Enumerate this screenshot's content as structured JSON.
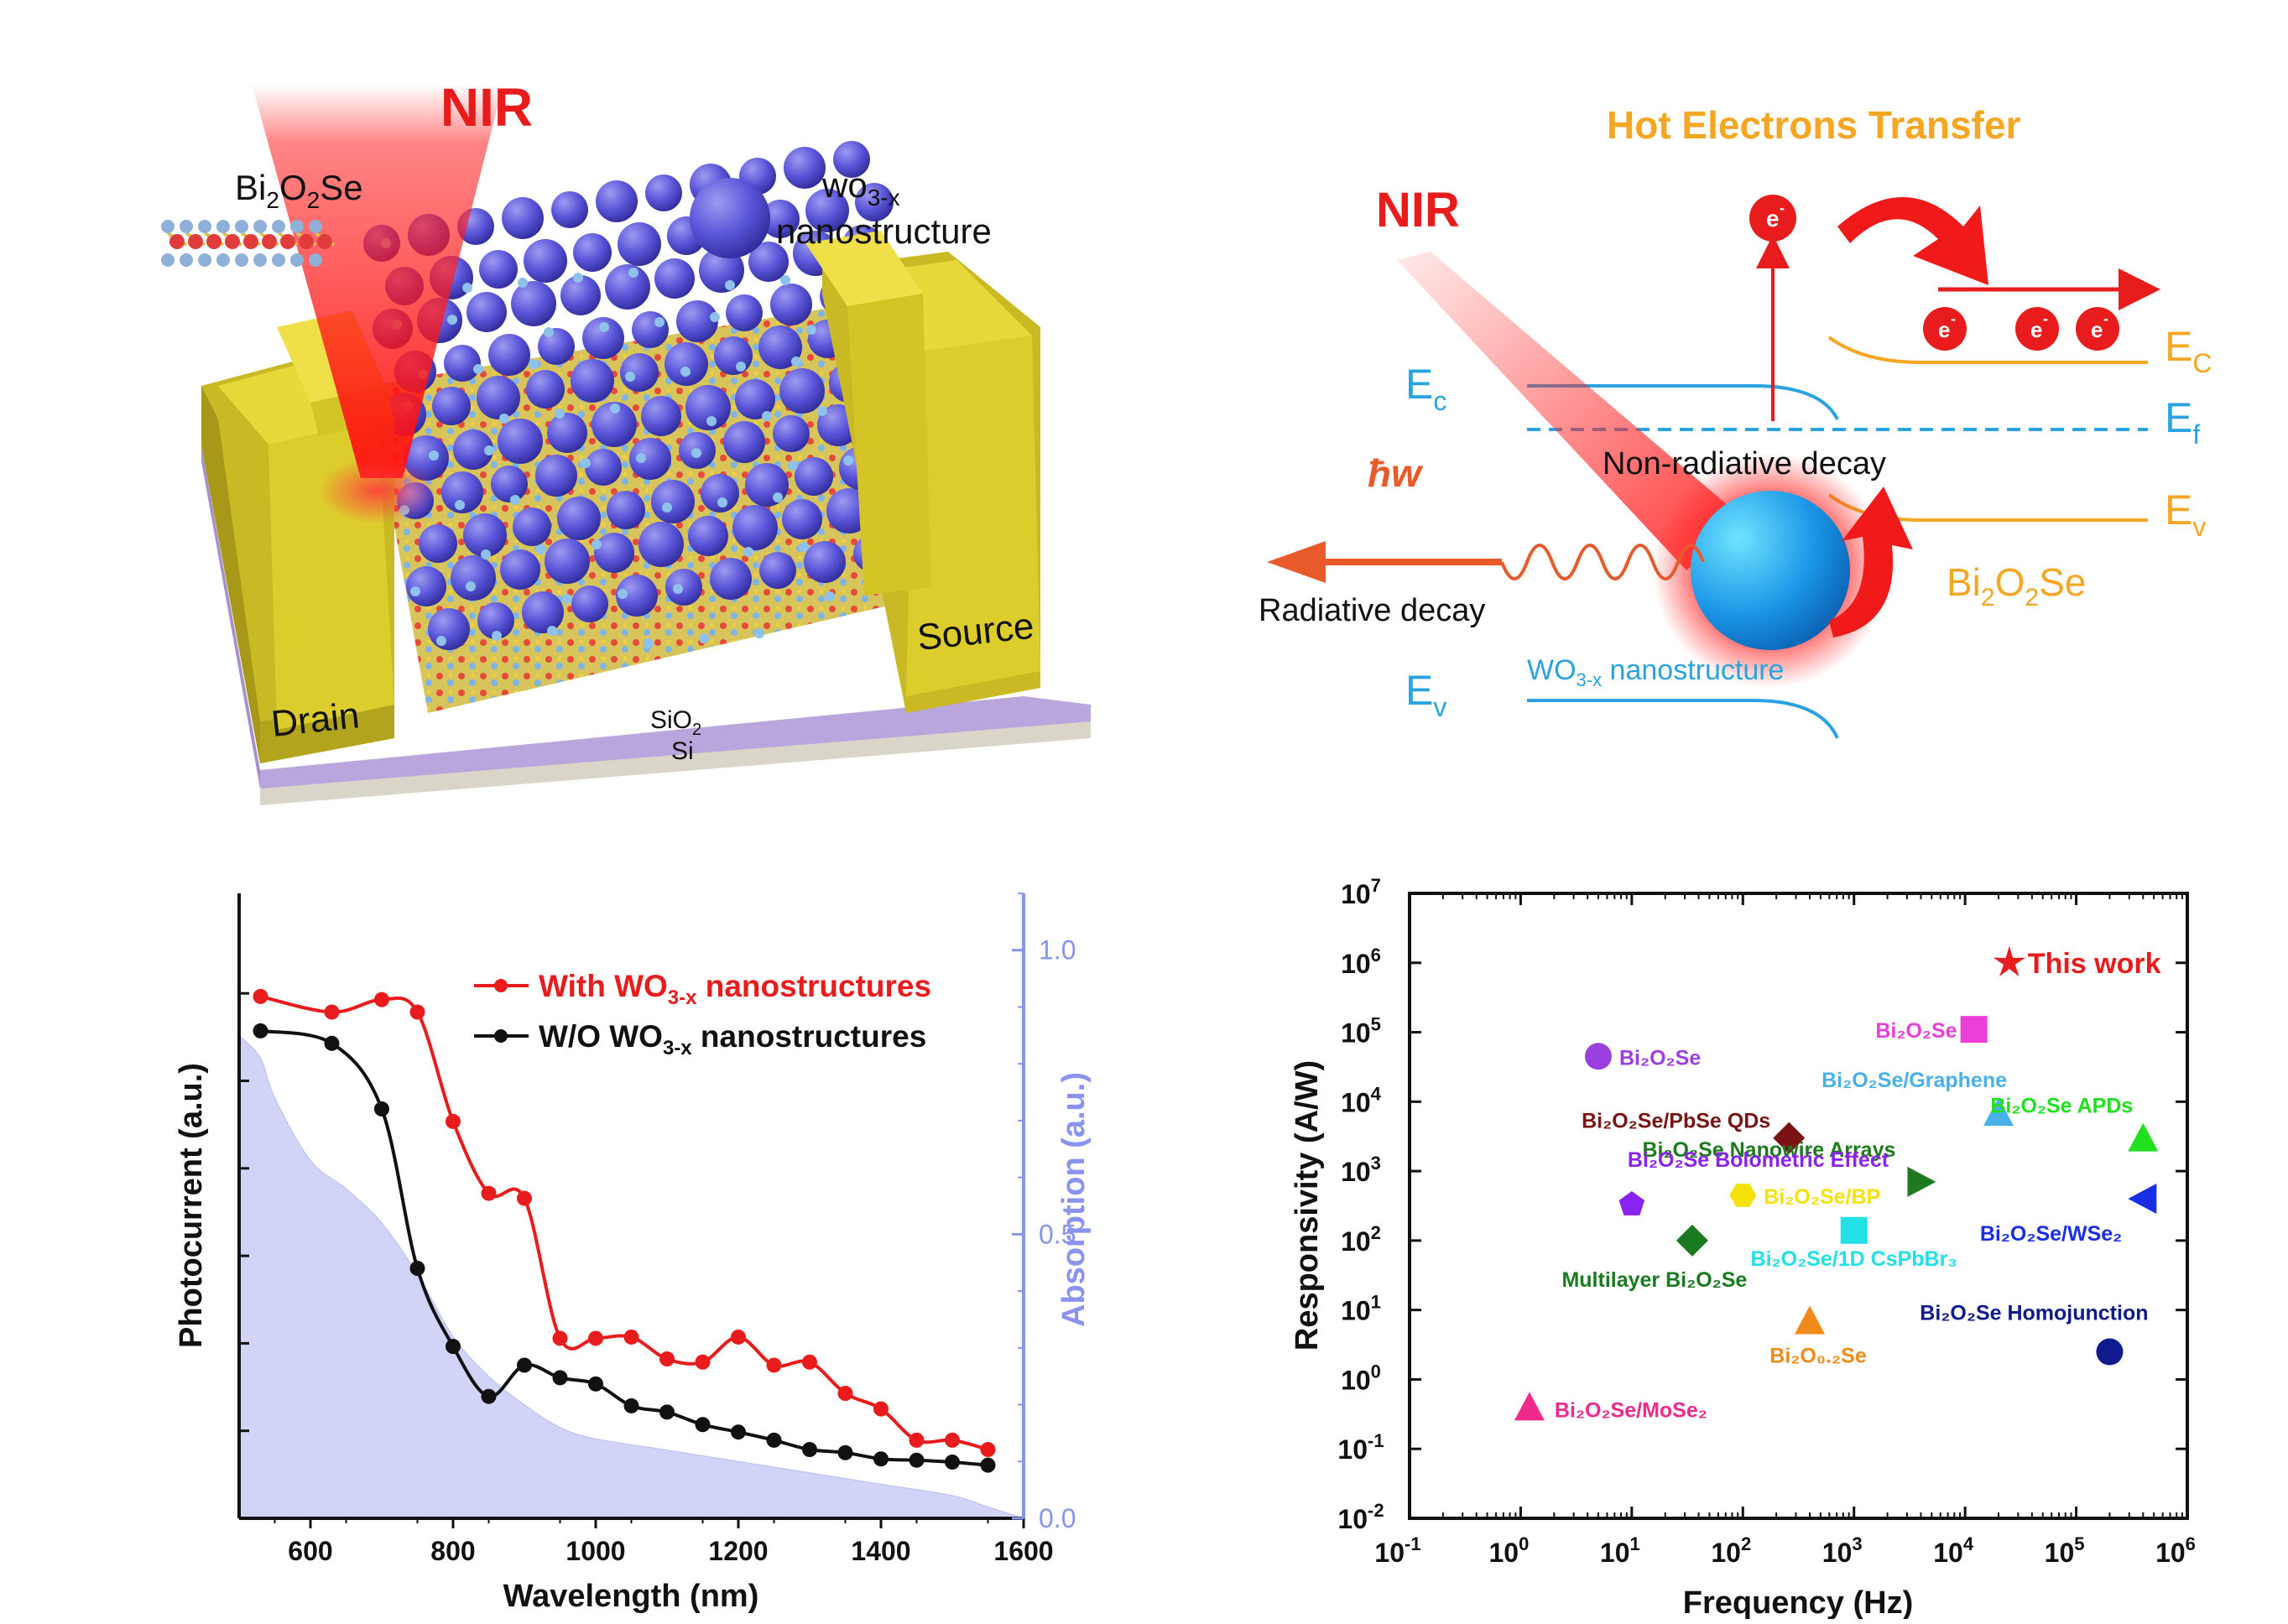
{
  "panel_a": {
    "nir": "NIR",
    "bi2o2se": [
      "Bi",
      "2",
      "O",
      "2",
      "Se"
    ],
    "wo3_label_1": [
      "wo",
      "3-x"
    ],
    "wo3_label_2": "nanostructure",
    "drain": "Drain",
    "source": "Source",
    "sio2": [
      "SiO",
      "2"
    ],
    "si": "Si",
    "colors": {
      "gold": "#e3d12a",
      "nir": "#ff1a1a",
      "wo3": "#5a55d8"
    }
  },
  "panel_b": {
    "hot_electrons": "Hot Electrons Transfer",
    "nir": "NIR",
    "hbar_w": "ħw",
    "radiative": "Radiative decay",
    "nonradiative": "Non-radiative decay",
    "electron": "e",
    "electron_sup": "-",
    "ec_left": [
      "E",
      "c"
    ],
    "ev_left": [
      "E",
      "v"
    ],
    "ec_right": [
      "E",
      "C"
    ],
    "ef_right": [
      "E",
      "f"
    ],
    "ev_right": [
      "E",
      "v"
    ],
    "wo3_label": [
      "WO",
      "3-x",
      " nanostructure"
    ],
    "bi2o2se": [
      "Bi",
      "2",
      "O",
      "2",
      "Se"
    ],
    "colors": {
      "orange": "#f5a623",
      "blue": "#2aa3e0",
      "red": "#ff1a1a",
      "arrow": "#e85a2a"
    }
  },
  "chart_data": [
    {
      "type": "line",
      "xlabel": "Wavelength (nm)",
      "ylabel": "Photocurrent (a.u.)",
      "y2label": "Absorption (a.u.)",
      "xlim": [
        500,
        1600
      ],
      "xticks": [
        "600",
        "800",
        "1000",
        "1200",
        "1400",
        "1600"
      ],
      "y2ticks": [
        "0.0",
        "0.5",
        "1.0"
      ],
      "y2lim": [
        0,
        1.1
      ],
      "series": [
        {
          "name_parts": [
            "With WO",
            "3-x",
            " nanostructures"
          ],
          "color": "#e81c1c",
          "x": [
            530,
            630,
            700,
            750,
            800,
            850,
            900,
            950,
            1000,
            1050,
            1100,
            1150,
            1200,
            1250,
            1300,
            1350,
            1400,
            1450,
            1500,
            1550
          ],
          "y": [
            0.835,
            0.81,
            0.83,
            0.81,
            0.635,
            0.52,
            0.512,
            0.288,
            0.288,
            0.29,
            0.255,
            0.25,
            0.29,
            0.245,
            0.25,
            0.2,
            0.175,
            0.125,
            0.125,
            0.11
          ]
        },
        {
          "name_parts": [
            "W/O WO",
            "3-x",
            " nanostructures"
          ],
          "color": "#111111",
          "x": [
            530,
            630,
            700,
            750,
            800,
            850,
            900,
            950,
            1000,
            1050,
            1100,
            1150,
            1200,
            1250,
            1300,
            1350,
            1400,
            1450,
            1500,
            1550
          ],
          "y": [
            0.78,
            0.76,
            0.655,
            0.4,
            0.275,
            0.195,
            0.245,
            0.225,
            0.215,
            0.18,
            0.17,
            0.15,
            0.138,
            0.125,
            0.11,
            0.105,
            0.095,
            0.093,
            0.09,
            0.085
          ]
        },
        {
          "name": "Absorption",
          "color": "#c9cdf5",
          "x": [
            500,
            530,
            550,
            600,
            650,
            700,
            750,
            800,
            850,
            900,
            950,
            1000,
            1100,
            1200,
            1300,
            1400,
            1500,
            1550,
            1600
          ],
          "y": [
            0.85,
            0.81,
            0.74,
            0.63,
            0.58,
            0.52,
            0.43,
            0.32,
            0.25,
            0.2,
            0.16,
            0.14,
            0.12,
            0.1,
            0.08,
            0.06,
            0.04,
            0.02,
            0.0
          ]
        }
      ]
    },
    {
      "type": "scatter",
      "xlabel": "Frequency (Hz)",
      "ylabel": "Responsivity (A/W)",
      "xscale": "log",
      "yscale": "log",
      "xlim": [
        0.1,
        1000000
      ],
      "ylim": [
        0.01,
        10000000
      ],
      "xticks": [
        [
          "10",
          "-1"
        ],
        [
          "10",
          "0"
        ],
        [
          "10",
          "1"
        ],
        [
          "10",
          "2"
        ],
        [
          "10",
          "3"
        ],
        [
          "10",
          "4"
        ],
        [
          "10",
          "5"
        ],
        [
          "10",
          "6"
        ]
      ],
      "yticks": [
        [
          "10",
          "-2"
        ],
        [
          "10",
          "-1"
        ],
        [
          "10",
          "0"
        ],
        [
          "10",
          "1"
        ],
        [
          "10",
          "2"
        ],
        [
          "10",
          "3"
        ],
        [
          "10",
          "4"
        ],
        [
          "10",
          "5"
        ],
        [
          "10",
          "6"
        ],
        [
          "10",
          "7"
        ]
      ],
      "points": [
        {
          "label": "This work",
          "x": 25000,
          "y": 1000000,
          "marker": "star",
          "color": "#e81c1c"
        },
        {
          "label": "Bi₂O₂Se",
          "x": 12000,
          "y": 110000,
          "marker": "square",
          "color": "#ee3ed8"
        },
        {
          "label": "Bi₂O₂Se",
          "x": 5,
          "y": 45000,
          "marker": "circle",
          "color": "#9a3fe0"
        },
        {
          "label": "Bi₂O₂Se/Graphene",
          "x": 20000,
          "y": 7000,
          "marker": "triangle",
          "color": "#4ab0ea"
        },
        {
          "label": "Bi₂O₂Se APDs",
          "x": 400000,
          "y": 3000,
          "marker": "triangle",
          "color": "#20e020"
        },
        {
          "label": "Bi₂O₂Se/PbSe QDs",
          "x": 260,
          "y": 3000,
          "marker": "diamond",
          "color": "#7a1414"
        },
        {
          "label": "Bi₂O₂Se Nanowire Arrays",
          "x": 4000,
          "y": 700,
          "marker": "triangle-right",
          "color": "#1f7a1f"
        },
        {
          "label": "Bi₂O₂Se/BP",
          "x": 100,
          "y": 450,
          "marker": "hexagon",
          "color": "#f5e20a"
        },
        {
          "label": "Bi₂O₂Se Bolometric Effect",
          "x": 10,
          "y": 330,
          "marker": "pentagon",
          "color": "#8a22f0"
        },
        {
          "label": "Bi₂O₂Se/WSe₂",
          "x": 400000,
          "y": 400,
          "marker": "triangle-left",
          "color": "#1a2ee6"
        },
        {
          "label": "Bi₂O₂Se/1D CsPbBr₃",
          "x": 1000,
          "y": 140,
          "marker": "square",
          "color": "#22e0e6"
        },
        {
          "label": "Multilayer Bi₂O₂Se",
          "x": 35,
          "y": 100,
          "marker": "diamond",
          "color": "#1a7a20"
        },
        {
          "label": "Bi₂O₀.₂Se",
          "x": 400,
          "y": 7,
          "marker": "triangle",
          "color": "#f28a1a"
        },
        {
          "label": "Bi₂O₂Se Homojunction",
          "x": 200000,
          "y": 2.5,
          "marker": "circle",
          "color": "#0f1a8c"
        },
        {
          "label": "Bi₂O₂Se/MoSe₂",
          "x": 1.2,
          "y": 0.4,
          "marker": "triangle",
          "color": "#ee2a8c"
        }
      ]
    }
  ]
}
